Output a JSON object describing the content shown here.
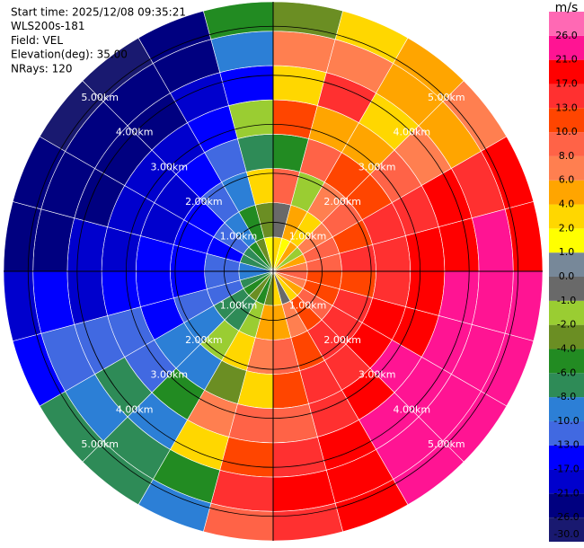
{
  "chart_data": {
    "type": "ppi",
    "header": [
      "Start time: 2025/12/08 09:35:21",
      "WLS200s-181",
      "Field: VEL",
      "Elevation(deg): 35.00",
      "NRays: 120"
    ],
    "azimuth_bins": [
      0,
      15,
      30,
      45,
      60,
      75,
      90,
      105,
      120,
      135,
      150,
      165,
      180,
      195,
      210,
      225,
      240,
      255,
      270,
      285,
      300,
      315,
      330,
      345,
      360
    ],
    "range_bins": [
      0,
      0.7,
      1.4,
      2.1,
      2.8,
      3.5,
      4.2,
      4.9,
      5.5
    ],
    "rlim": [
      0,
      5.5
    ],
    "values": [
      [
        3,
        -1,
        8,
        -5,
        12,
        2,
        6,
        -3
      ],
      [
        1,
        5,
        -2,
        9,
        4,
        14,
        6,
        2
      ],
      [
        5,
        2,
        7,
        10,
        4,
        3,
        5,
        4
      ],
      [
        -2,
        6,
        9,
        12,
        8,
        6,
        5,
        7
      ],
      [
        4,
        8,
        11,
        14,
        13,
        18,
        16,
        19
      ],
      [
        6,
        9,
        13,
        15,
        18,
        20,
        22,
        19
      ],
      [
        8,
        10,
        12,
        16,
        19,
        22,
        23,
        24
      ],
      [
        7,
        12,
        14,
        17,
        20,
        23,
        24,
        25
      ],
      [
        5,
        9,
        15,
        18,
        22,
        24,
        23,
        25
      ],
      [
        3,
        11,
        13,
        16,
        19,
        22,
        24,
        23
      ],
      [
        -1,
        7,
        10,
        14,
        15,
        18,
        20,
        19
      ],
      [
        2,
        5,
        8,
        12,
        9,
        15,
        17,
        14
      ],
      [
        -3,
        4,
        6,
        2,
        9,
        11,
        14,
        8
      ],
      [
        -5,
        -2,
        3,
        -4,
        6,
        2,
        -6,
        -9
      ],
      [
        -4,
        -7,
        -2,
        -9,
        -6,
        -10,
        -8,
        -7
      ],
      [
        -6,
        -8,
        -10,
        -9,
        -12,
        -7,
        -9,
        -8
      ],
      [
        -8,
        -11,
        -12,
        -14,
        -11,
        -13,
        -12,
        -14
      ],
      [
        -9,
        -12,
        -14,
        -15,
        -16,
        -18,
        -17,
        -19
      ],
      [
        -10,
        -13,
        -15,
        -17,
        -19,
        -20,
        -22,
        -23
      ],
      [
        -8,
        -14,
        -16,
        -18,
        -20,
        -22,
        -23,
        -24
      ],
      [
        -7,
        -12,
        -15,
        -19,
        -21,
        -23,
        -25,
        -27
      ],
      [
        -5,
        -10,
        -13,
        -16,
        -20,
        -24,
        -26,
        -28
      ],
      [
        -3,
        -6,
        -9,
        -12,
        -17,
        -21,
        -24,
        -25
      ],
      [
        1,
        -4,
        3,
        -8,
        -2,
        -14,
        -10,
        -6
      ]
    ],
    "rings": [
      {
        "value": 1,
        "label": "1.00km"
      },
      {
        "value": 2,
        "label": "2.00km"
      },
      {
        "value": 3,
        "label": "3.00km"
      },
      {
        "value": 4,
        "label": "4.00km"
      },
      {
        "value": 5,
        "label": "5.00km"
      }
    ],
    "ring_label_azimuths": [
      45,
      135,
      225,
      315
    ],
    "colorbar": {
      "label": "m/s",
      "levels": [
        -30,
        -26,
        -21,
        -17,
        -13,
        -10,
        -8,
        -6,
        -4,
        -2,
        -1,
        0,
        1,
        2,
        4,
        6,
        8,
        10,
        13,
        17,
        21,
        26,
        30
      ],
      "colors": [
        "#191970",
        "#000080",
        "#0000cd",
        "#0000ff",
        "#4169e1",
        "#2c7fd6",
        "#2e8b57",
        "#228b22",
        "#6b8e23",
        "#9acd32",
        "#696969",
        "#778899",
        "#ffff00",
        "#ffd700",
        "#ffa500",
        "#ff7f50",
        "#ff6347",
        "#ff4500",
        "#ff3030",
        "#ff0000",
        "#ff1493",
        "#ff69b4"
      ],
      "ticks": [
        {
          "value": -30,
          "label": "-30.0"
        },
        {
          "value": -26,
          "label": "-26.0"
        },
        {
          "value": -21,
          "label": "-21.0"
        },
        {
          "value": -17,
          "label": "-17.0"
        },
        {
          "value": -13,
          "label": "-13.0"
        },
        {
          "value": -10,
          "label": "-10.0"
        },
        {
          "value": -8,
          "label": "-8.0"
        },
        {
          "value": -6,
          "label": "-6.0"
        },
        {
          "value": -4,
          "label": "-4.0"
        },
        {
          "value": -2,
          "label": "-2.0"
        },
        {
          "value": -1,
          "label": "-1.0"
        },
        {
          "value": 0,
          "label": "0.0"
        },
        {
          "value": 1,
          "label": "1.0"
        },
        {
          "value": 2,
          "label": "2.0"
        },
        {
          "value": 4,
          "label": "4.0"
        },
        {
          "value": 6,
          "label": "6.0"
        },
        {
          "value": 8,
          "label": "8.0"
        },
        {
          "value": 10,
          "label": "10.0"
        },
        {
          "value": 13,
          "label": "13.0"
        },
        {
          "value": 17,
          "label": "17.0"
        },
        {
          "value": 21,
          "label": "21.0"
        },
        {
          "value": 26,
          "label": "26.0"
        }
      ]
    }
  }
}
